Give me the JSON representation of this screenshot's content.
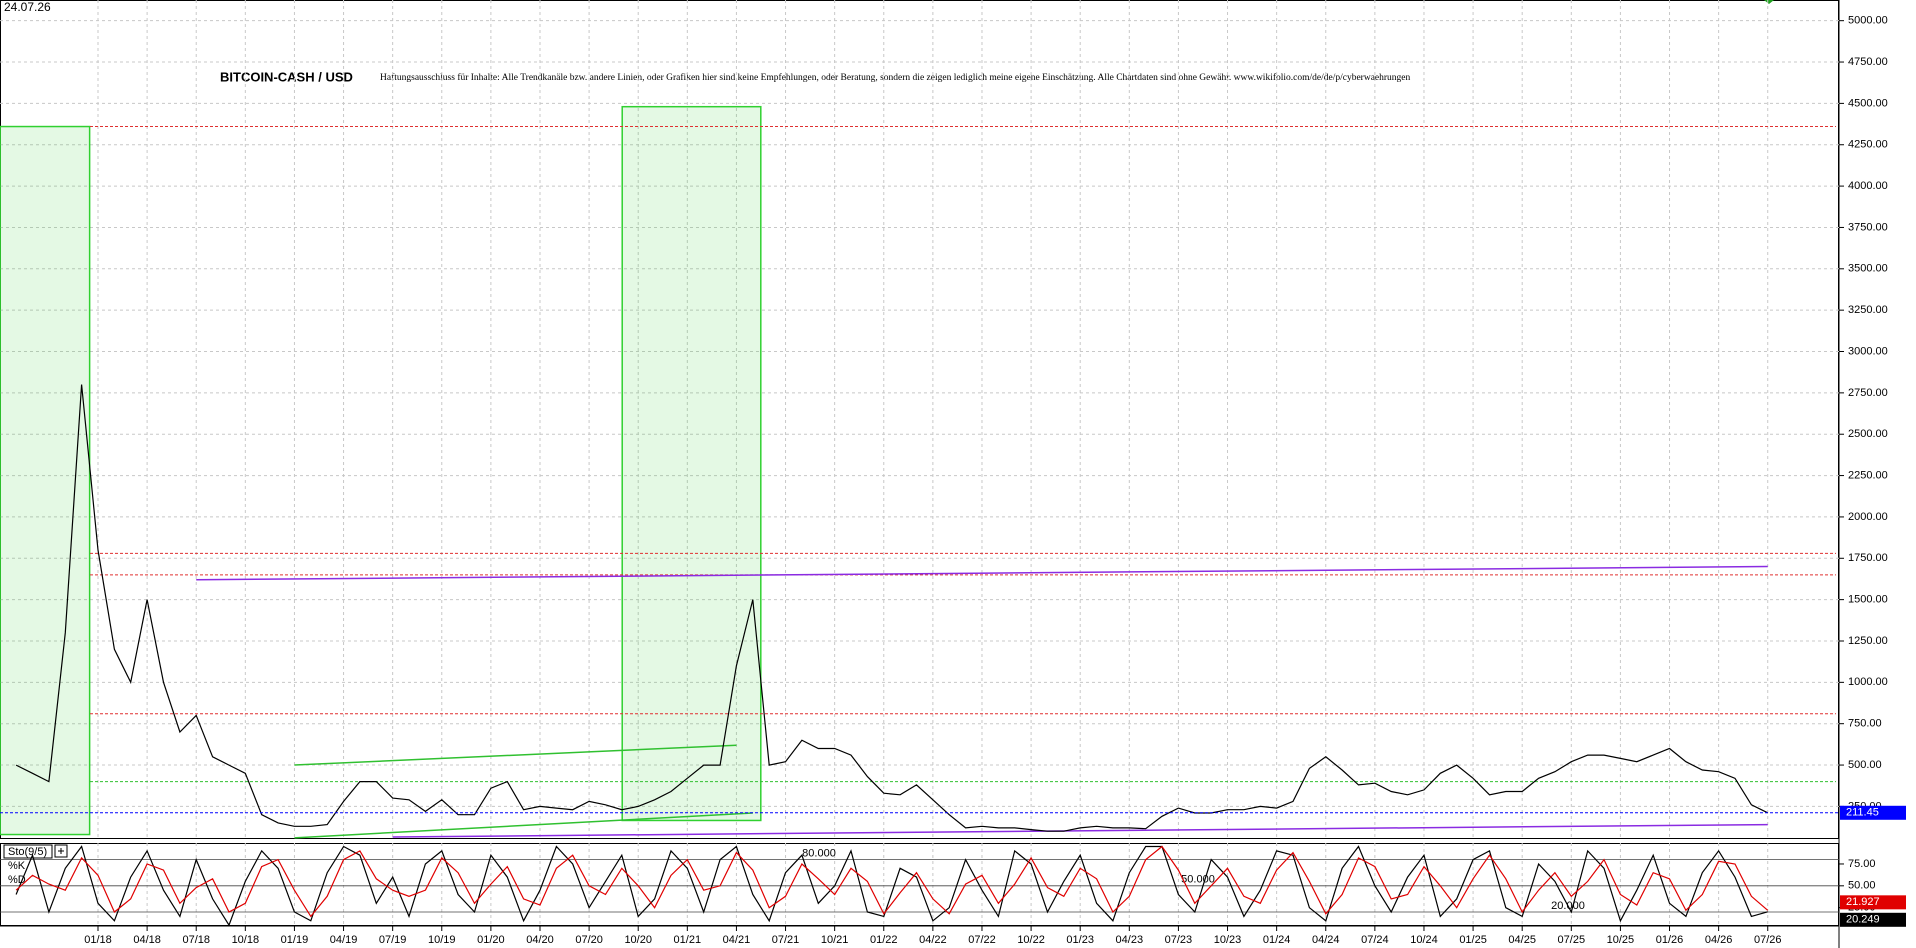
{
  "chart_data": [
    {
      "type": "line",
      "date": "24.07.26",
      "title": "BITCOIN-CASH / USD",
      "subtitle": "Haftungsausschluss für Inhalte: Alle Trendkanäle bzw. andere Linien, oder Grafiken hier sind keine Empfehlungen, oder Beratung, sondern die zeigen lediglich meine eigene Einschätzung. Alle Chartdaten sind ohne Gewähr. www.wikifolio.com/de/de/p/cyberwaehrungen",
      "x": [
        "08/17",
        "09/17",
        "10/17",
        "11/17",
        "12/17",
        "01/18",
        "02/18",
        "03/18",
        "04/18",
        "05/18",
        "06/18",
        "07/18",
        "08/18",
        "09/18",
        "10/18",
        "11/18",
        "12/18",
        "01/19",
        "02/19",
        "03/19",
        "04/19",
        "05/19",
        "06/19",
        "07/19",
        "08/19",
        "09/19",
        "10/19",
        "11/19",
        "12/19",
        "01/20",
        "02/20",
        "03/20",
        "04/20",
        "05/20",
        "06/20",
        "07/20",
        "08/20",
        "09/20",
        "10/20",
        "11/20",
        "12/20",
        "01/21",
        "02/21",
        "03/21",
        "04/21",
        "05/21",
        "06/21",
        "07/21",
        "08/21",
        "09/21",
        "10/21",
        "11/21",
        "12/21",
        "01/22",
        "02/22",
        "03/22",
        "04/22",
        "05/22",
        "06/22",
        "07/22",
        "08/22",
        "09/22",
        "10/22",
        "11/22",
        "12/22",
        "01/23",
        "02/23",
        "03/23",
        "04/23",
        "05/23",
        "06/23",
        "07/23",
        "08/23",
        "09/23",
        "10/23",
        "11/23",
        "12/23",
        "01/24",
        "02/24",
        "03/24",
        "04/24",
        "05/24",
        "06/24",
        "07/24",
        "08/24",
        "09/24",
        "10/24",
        "11/24",
        "12/24",
        "01/25",
        "02/25",
        "03/25",
        "04/25",
        "05/25",
        "06/25",
        "07/25",
        "08/25",
        "09/25",
        "10/25",
        "11/25",
        "12/25",
        "01/26",
        "02/26",
        "03/26",
        "04/26",
        "05/26",
        "06/26",
        "07/26"
      ],
      "series": [
        {
          "color": "#000000",
          "values": [
            500,
            450,
            400,
            1300,
            2800,
            1800,
            1200,
            1000,
            1500,
            1000,
            700,
            800,
            550,
            500,
            450,
            200,
            150,
            130,
            130,
            140,
            280,
            400,
            400,
            300,
            290,
            220,
            290,
            200,
            200,
            360,
            400,
            230,
            250,
            240,
            230,
            280,
            260,
            230,
            250,
            290,
            340,
            420,
            500,
            500,
            1100,
            1500,
            500,
            520,
            650,
            600,
            600,
            560,
            430,
            330,
            320,
            380,
            290,
            200,
            120,
            130,
            120,
            120,
            110,
            100,
            100,
            120,
            130,
            120,
            120,
            115,
            190,
            240,
            210,
            210,
            230,
            230,
            250,
            240,
            280,
            480,
            550,
            470,
            380,
            390,
            340,
            320,
            350,
            450,
            500,
            420,
            320,
            340,
            340,
            420,
            460,
            520,
            560,
            560,
            540,
            520,
            560,
            600,
            520,
            470,
            460,
            420,
            260,
            211.45
          ]
        }
      ],
      "current_color": "#0000ff",
      "ylim": [
        59,
        5125
      ],
      "yticks": [
        {
          "value": 250,
          "label": "250.00"
        },
        {
          "value": 500,
          "label": "500.00"
        },
        {
          "value": 750,
          "label": "750.00"
        },
        {
          "value": 1000,
          "label": "1000.00"
        },
        {
          "value": 1250,
          "label": "1250.00"
        },
        {
          "value": 1500,
          "label": "1500.00"
        },
        {
          "value": 1750,
          "label": "1750.00"
        },
        {
          "value": 2000,
          "label": "2000.00"
        },
        {
          "value": 2250,
          "label": "2250.00"
        },
        {
          "value": 2500,
          "label": "2500.00"
        },
        {
          "value": 2750,
          "label": "2750.00"
        },
        {
          "value": 3000,
          "label": "3000.00"
        },
        {
          "value": 3250,
          "label": "3250.00"
        },
        {
          "value": 3500,
          "label": "3500.00"
        },
        {
          "value": 3750,
          "label": "3750.00"
        },
        {
          "value": 4000,
          "label": "4000.00"
        },
        {
          "value": 4250,
          "label": "4250.00"
        },
        {
          "value": 4500,
          "label": "4500.00"
        },
        {
          "value": 4750,
          "label": "4750.00"
        },
        {
          "value": 5000,
          "label": "5000.00"
        }
      ],
      "xticks": [
        "01/18",
        "04/18",
        "07/18",
        "10/18",
        "01/19",
        "04/19",
        "07/19",
        "10/19",
        "01/20",
        "04/20",
        "07/20",
        "10/20",
        "01/21",
        "04/21",
        "07/21",
        "10/21",
        "01/22",
        "04/22",
        "07/22",
        "10/22",
        "01/23",
        "04/23",
        "07/23",
        "10/23",
        "01/24",
        "04/24",
        "07/24",
        "10/24",
        "01/25",
        "04/25",
        "07/25",
        "10/25",
        "01/26",
        "04/26",
        "07/26"
      ],
      "grid": true,
      "hlines": [
        {
          "value": 4360,
          "color": "#e03030"
        },
        {
          "value": 1780,
          "color": "#e03030"
        },
        {
          "value": 1650,
          "color": "#e03030"
        },
        {
          "value": 810,
          "color": "#e03030"
        },
        {
          "value": 400,
          "color": "#30c030"
        }
      ],
      "boxes": [
        {
          "x": [
            "08/17",
            "12/17"
          ],
          "y": [
            80,
            4360
          ],
          "color": "#30d030"
        },
        {
          "x": [
            "10/20",
            "05/21"
          ],
          "y": [
            165,
            4480
          ],
          "color": "#30d030"
        }
      ],
      "trendlines": [
        {
          "x": [
            "07/18",
            "07/26"
          ],
          "y": [
            1620,
            1700
          ],
          "color": "#8a2be2"
        },
        {
          "x": [
            "07/19",
            "07/26"
          ],
          "y": [
            65,
            140
          ],
          "color": "#8a2be2"
        },
        {
          "x": [
            "01/19",
            "04/21"
          ],
          "y": [
            500,
            620
          ],
          "color": "#30c030"
        },
        {
          "x": [
            "01/19",
            "05/21"
          ],
          "y": [
            60,
            210
          ],
          "color": "#30c030"
        }
      ]
    },
    {
      "type": "line",
      "label": "Sto(9/5)",
      "series": [
        {
          "name": "%K",
          "color": "#000000",
          "values": [
            40,
            85,
            20,
            70,
            95,
            30,
            10,
            60,
            90,
            45,
            15,
            80,
            35,
            5,
            55,
            90,
            70,
            20,
            10,
            65,
            95,
            85,
            30,
            60,
            15,
            75,
            90,
            40,
            20,
            85,
            60,
            10,
            45,
            95,
            75,
            25,
            55,
            85,
            15,
            35,
            90,
            70,
            20,
            80,
            95,
            40,
            10,
            65,
            85,
            30,
            50,
            90,
            20,
            15,
            70,
            60,
            10,
            25,
            80,
            45,
            15,
            90,
            75,
            20,
            55,
            85,
            30,
            10,
            65,
            95,
            95,
            40,
            20,
            80,
            60,
            15,
            45,
            90,
            85,
            25,
            10,
            70,
            95,
            50,
            20,
            60,
            85,
            15,
            35,
            80,
            90,
            25,
            15,
            75,
            55,
            20,
            90,
            70,
            10,
            45,
            85,
            30,
            15,
            65,
            90,
            60,
            15,
            20.249
          ]
        },
        {
          "name": "%D",
          "color": "#e00000",
          "values": [
            45,
            62,
            52,
            45,
            82,
            62,
            20,
            35,
            75,
            68,
            30,
            48,
            58,
            20,
            30,
            72,
            80,
            45,
            15,
            38,
            80,
            90,
            58,
            45,
            38,
            45,
            82,
            65,
            30,
            52,
            72,
            35,
            28,
            70,
            85,
            50,
            40,
            70,
            50,
            25,
            62,
            80,
            45,
            50,
            88,
            68,
            25,
            38,
            75,
            58,
            40,
            70,
            55,
            18,
            42,
            65,
            35,
            18,
            52,
            62,
            30,
            52,
            82,
            48,
            38,
            70,
            58,
            20,
            38,
            80,
            95,
            68,
            30,
            50,
            70,
            38,
            30,
            68,
            88,
            55,
            18,
            40,
            82,
            72,
            35,
            40,
            72,
            50,
            25,
            58,
            85,
            58,
            20,
            45,
            65,
            38,
            55,
            80,
            40,
            28,
            65,
            58,
            22,
            40,
            78,
            75,
            38,
            21.927
          ]
        }
      ],
      "ylim": [
        4,
        99
      ],
      "yticks": [
        {
          "value": 75,
          "label": "75.00"
        },
        {
          "value": 50,
          "label": "50.00"
        },
        {
          "value": 25,
          "label": "25.00"
        }
      ],
      "levels": [
        {
          "value": 80,
          "label": "80.000"
        },
        {
          "value": 50,
          "label": "50.000"
        },
        {
          "value": 20,
          "label": "20.000"
        }
      ]
    }
  ]
}
